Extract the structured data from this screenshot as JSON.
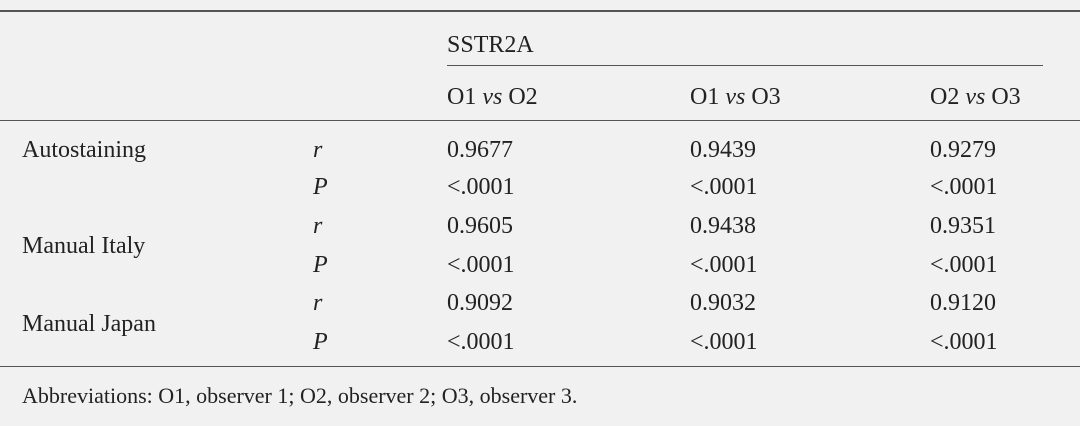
{
  "table": {
    "group_header": "SSTR2A",
    "columns": [
      [
        "O1",
        "vs",
        "O2"
      ],
      [
        "O1",
        "vs",
        "O3"
      ],
      [
        "O2",
        "vs",
        "O3"
      ]
    ],
    "rows": [
      {
        "label": "Autostaining",
        "stats": [
          {
            "stat": "r",
            "values": [
              "0.9677",
              "0.9439",
              "0.9279"
            ]
          },
          {
            "stat": "P",
            "values": [
              "<.0001",
              "<.0001",
              "<.0001"
            ]
          }
        ]
      },
      {
        "label": "Manual Italy",
        "stats": [
          {
            "stat": "r",
            "values": [
              "0.9605",
              "0.9438",
              "0.9351"
            ]
          },
          {
            "stat": "P",
            "values": [
              "<.0001",
              "<.0001",
              "<.0001"
            ]
          }
        ]
      },
      {
        "label": "Manual Japan",
        "stats": [
          {
            "stat": "r",
            "values": [
              "0.9092",
              "0.9032",
              "0.9120"
            ]
          },
          {
            "stat": "P",
            "values": [
              "<.0001",
              "<.0001",
              "<.0001"
            ]
          }
        ]
      }
    ],
    "footnote": "Abbreviations: O1, observer 1; O2, observer 2; O3, observer 3."
  }
}
